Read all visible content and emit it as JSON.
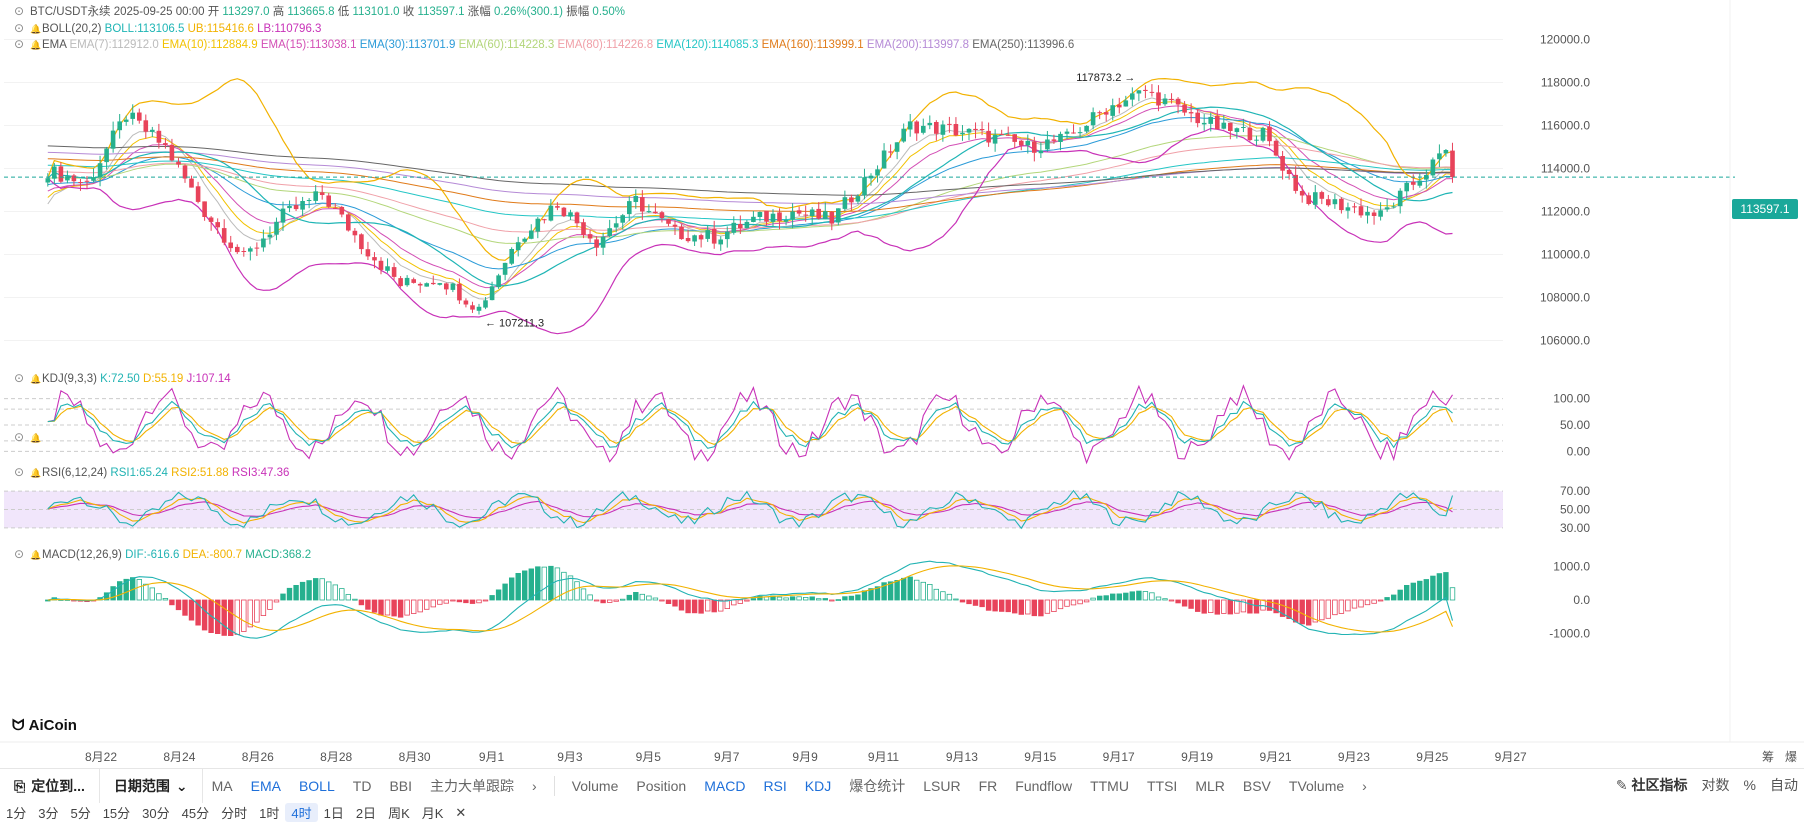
{
  "header": {
    "symbol": "BTC/USDT永续",
    "date": "2025-09-25 00:00",
    "open_label": "开",
    "open": "113297.0",
    "high_label": "高",
    "high": "113665.8",
    "low_label": "低",
    "low": "113101.0",
    "close_label": "收",
    "close": "113597.1",
    "change_label": "涨幅",
    "change": "0.26%(300.1)",
    "amp_label": "振幅",
    "amp": "0.50%"
  },
  "boll": {
    "name": "BOLL(20,2)",
    "mid": "BOLL:113106.5",
    "ub": "UB:115416.6",
    "lb": "LB:110796.3"
  },
  "ema": {
    "name": "EMA",
    "items": [
      {
        "text": "EMA(7):112912.0",
        "color": "#bbbbbb"
      },
      {
        "text": "EMA(10):112884.9",
        "color": "#f2c200"
      },
      {
        "text": "EMA(15):113038.1",
        "color": "#d34fb5"
      },
      {
        "text": "EMA(30):113701.9",
        "color": "#2b9bd8"
      },
      {
        "text": "EMA(60):114228.3",
        "color": "#b3d67a"
      },
      {
        "text": "EMA(80):114226.8",
        "color": "#f0a0a8"
      },
      {
        "text": "EMA(120):114085.3",
        "color": "#25c6c6"
      },
      {
        "text": "EMA(160):113999.1",
        "color": "#e07b1a"
      },
      {
        "text": "EMA(200):113997.8",
        "color": "#b58ad6"
      },
      {
        "text": "EMA(250):113996.6",
        "color": "#666666"
      }
    ]
  },
  "price_axis": [
    "120000.0",
    "118000.0",
    "116000.0",
    "114000.0",
    "112000.0",
    "110000.0",
    "108000.0",
    "106000.0"
  ],
  "last_price_tag": "113597.1",
  "annotations": {
    "high": "117873.2",
    "low": "107211.3"
  },
  "kdj": {
    "name": "KDJ(9,3,3)",
    "k": "K:72.50",
    "d": "D:55.19",
    "j": "J:107.14",
    "axis": [
      "100.00",
      "50.00",
      "0.00"
    ]
  },
  "rsi": {
    "name": "RSI(6,12,24)",
    "r1": "RSI1:65.24",
    "r2": "RSI2:51.88",
    "r3": "RSI3:47.36",
    "axis": [
      "70.00",
      "50.00",
      "30.00"
    ]
  },
  "macd": {
    "name": "MACD(12,26,9)",
    "dif": "DIF:-616.6",
    "dea": "DEA:-800.7",
    "macd": "MACD:368.2",
    "axis": [
      "1000.0",
      "0.0",
      "-1000.0"
    ]
  },
  "x_axis": [
    "8月22",
    "8月24",
    "8月26",
    "8月28",
    "8月30",
    "9月1",
    "9月3",
    "9月5",
    "9月7",
    "9月9",
    "9月11",
    "9月13",
    "9月15",
    "9月17",
    "9月19",
    "9月21",
    "9月23",
    "9月25",
    "9月27"
  ],
  "corner_labels": [
    "筹",
    "爆"
  ],
  "logo": "AiCoin",
  "toolbar": {
    "locate": "定位到...",
    "range": "日期范围",
    "indicators_left": [
      "MA",
      "EMA",
      "BOLL",
      "TD",
      "BBI",
      "主力大单跟踪"
    ],
    "indicators_right": [
      "Volume",
      "Position",
      "MACD",
      "RSI",
      "KDJ",
      "爆仓统计",
      "LSUR",
      "FR",
      "Fundflow",
      "TTMU",
      "TTSI",
      "MLR",
      "BSV",
      "TVolume"
    ],
    "community": "社区指标",
    "log": "对数",
    "pct": "%",
    "auto": "自动"
  },
  "timeframes": [
    "1分",
    "3分",
    "5分",
    "15分",
    "30分",
    "45分",
    "分时",
    "1时",
    "4时",
    "1日",
    "2日",
    "周K",
    "月K"
  ],
  "active_timeframe": "4时",
  "colors": {
    "up": "#26b08e",
    "down": "#e8435a",
    "boll_mid": "#1fb5b5",
    "boll_ub": "#f2b200",
    "boll_lb": "#c832b8",
    "kdj_k": "#22b3b3",
    "kdj_d": "#f2b200",
    "kdj_j": "#c832b8",
    "rsi1": "#22b3b3",
    "rsi2": "#f2b200",
    "rsi3": "#c832b8",
    "rsi_band": "#f1e6fb"
  },
  "chart_data": {
    "type": "candlestick",
    "interval": "4h",
    "x_range": [
      "8月21",
      "9月25"
    ],
    "price_range": [
      105000,
      121000
    ],
    "close_anchors": [
      {
        "x": "8月21",
        "close": 113900
      },
      {
        "x": "8月22",
        "close": 113300
      },
      {
        "x": "8月23",
        "close": 116500
      },
      {
        "x": "8月24",
        "close": 115000
      },
      {
        "x": "8月25",
        "close": 112000
      },
      {
        "x": "8月26",
        "close": 109800
      },
      {
        "x": "8月27",
        "close": 111800
      },
      {
        "x": "8月28",
        "close": 112800
      },
      {
        "x": "8月29",
        "close": 110500
      },
      {
        "x": "8月30",
        "close": 108600
      },
      {
        "x": "8月31",
        "close": 108900
      },
      {
        "x": "9月1",
        "close": 107500
      },
      {
        "x": "9月2",
        "close": 110800
      },
      {
        "x": "9月3",
        "close": 112400
      },
      {
        "x": "9月4",
        "close": 110600
      },
      {
        "x": "9月5",
        "close": 112500
      },
      {
        "x": "9月6",
        "close": 111000
      },
      {
        "x": "9月7",
        "close": 110800
      },
      {
        "x": "9月8",
        "close": 111600
      },
      {
        "x": "9月9",
        "close": 112000
      },
      {
        "x": "9月10",
        "close": 111600
      },
      {
        "x": "9月11",
        "close": 113800
      },
      {
        "x": "9月12",
        "close": 116000
      },
      {
        "x": "9月13",
        "close": 115800
      },
      {
        "x": "9月14",
        "close": 115500
      },
      {
        "x": "9月15",
        "close": 115000
      },
      {
        "x": "9月16",
        "close": 115400
      },
      {
        "x": "9月17",
        "close": 116800
      },
      {
        "x": "9月18",
        "close": 117600
      },
      {
        "x": "9月19",
        "close": 116600
      },
      {
        "x": "9月20",
        "close": 115800
      },
      {
        "x": "9月21",
        "close": 115600
      },
      {
        "x": "9月22",
        "close": 112700
      },
      {
        "x": "9月23",
        "close": 112300
      },
      {
        "x": "9月24",
        "close": 111800
      },
      {
        "x": "9月25",
        "close": 113597.1
      }
    ],
    "high": 117873.2,
    "low": 107211.3,
    "last": 113597.1,
    "kdj_range": [
      -20,
      120
    ],
    "rsi_range": [
      20,
      80
    ],
    "macd_range": [
      -1200,
      1200
    ]
  }
}
